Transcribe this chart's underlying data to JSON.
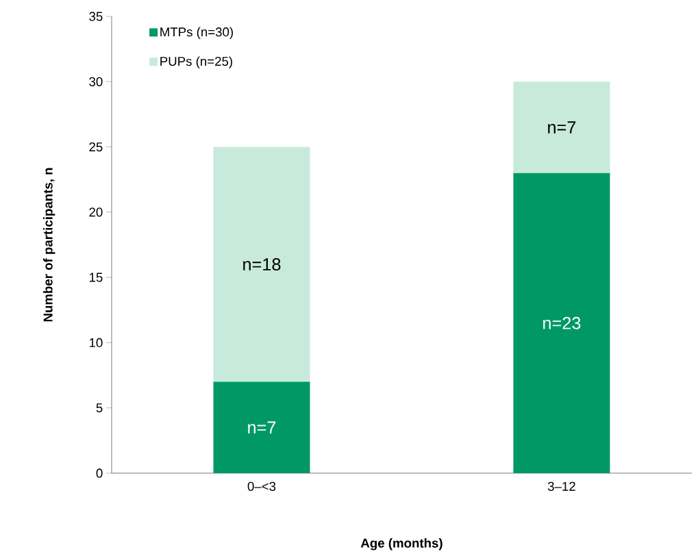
{
  "chart_data": {
    "type": "bar",
    "stacked": true,
    "xlabel": "Age (months)",
    "ylabel": "Number of participants, n",
    "categories": [
      "0–<3",
      "3–12"
    ],
    "series": [
      {
        "name": "MTPs (n=30)",
        "color": "#009966",
        "values": [
          7,
          23
        ],
        "value_labels": [
          "n=7",
          "n=23"
        ]
      },
      {
        "name": "PUPs (n=25)",
        "color": "#c8eadc",
        "values": [
          18,
          7
        ],
        "value_labels": [
          "n=18",
          "n=7"
        ]
      }
    ],
    "ylim": [
      0,
      35
    ],
    "yticks": [
      0,
      5,
      10,
      15,
      20,
      25,
      30,
      35
    ],
    "grid": false,
    "legend": "top left"
  }
}
